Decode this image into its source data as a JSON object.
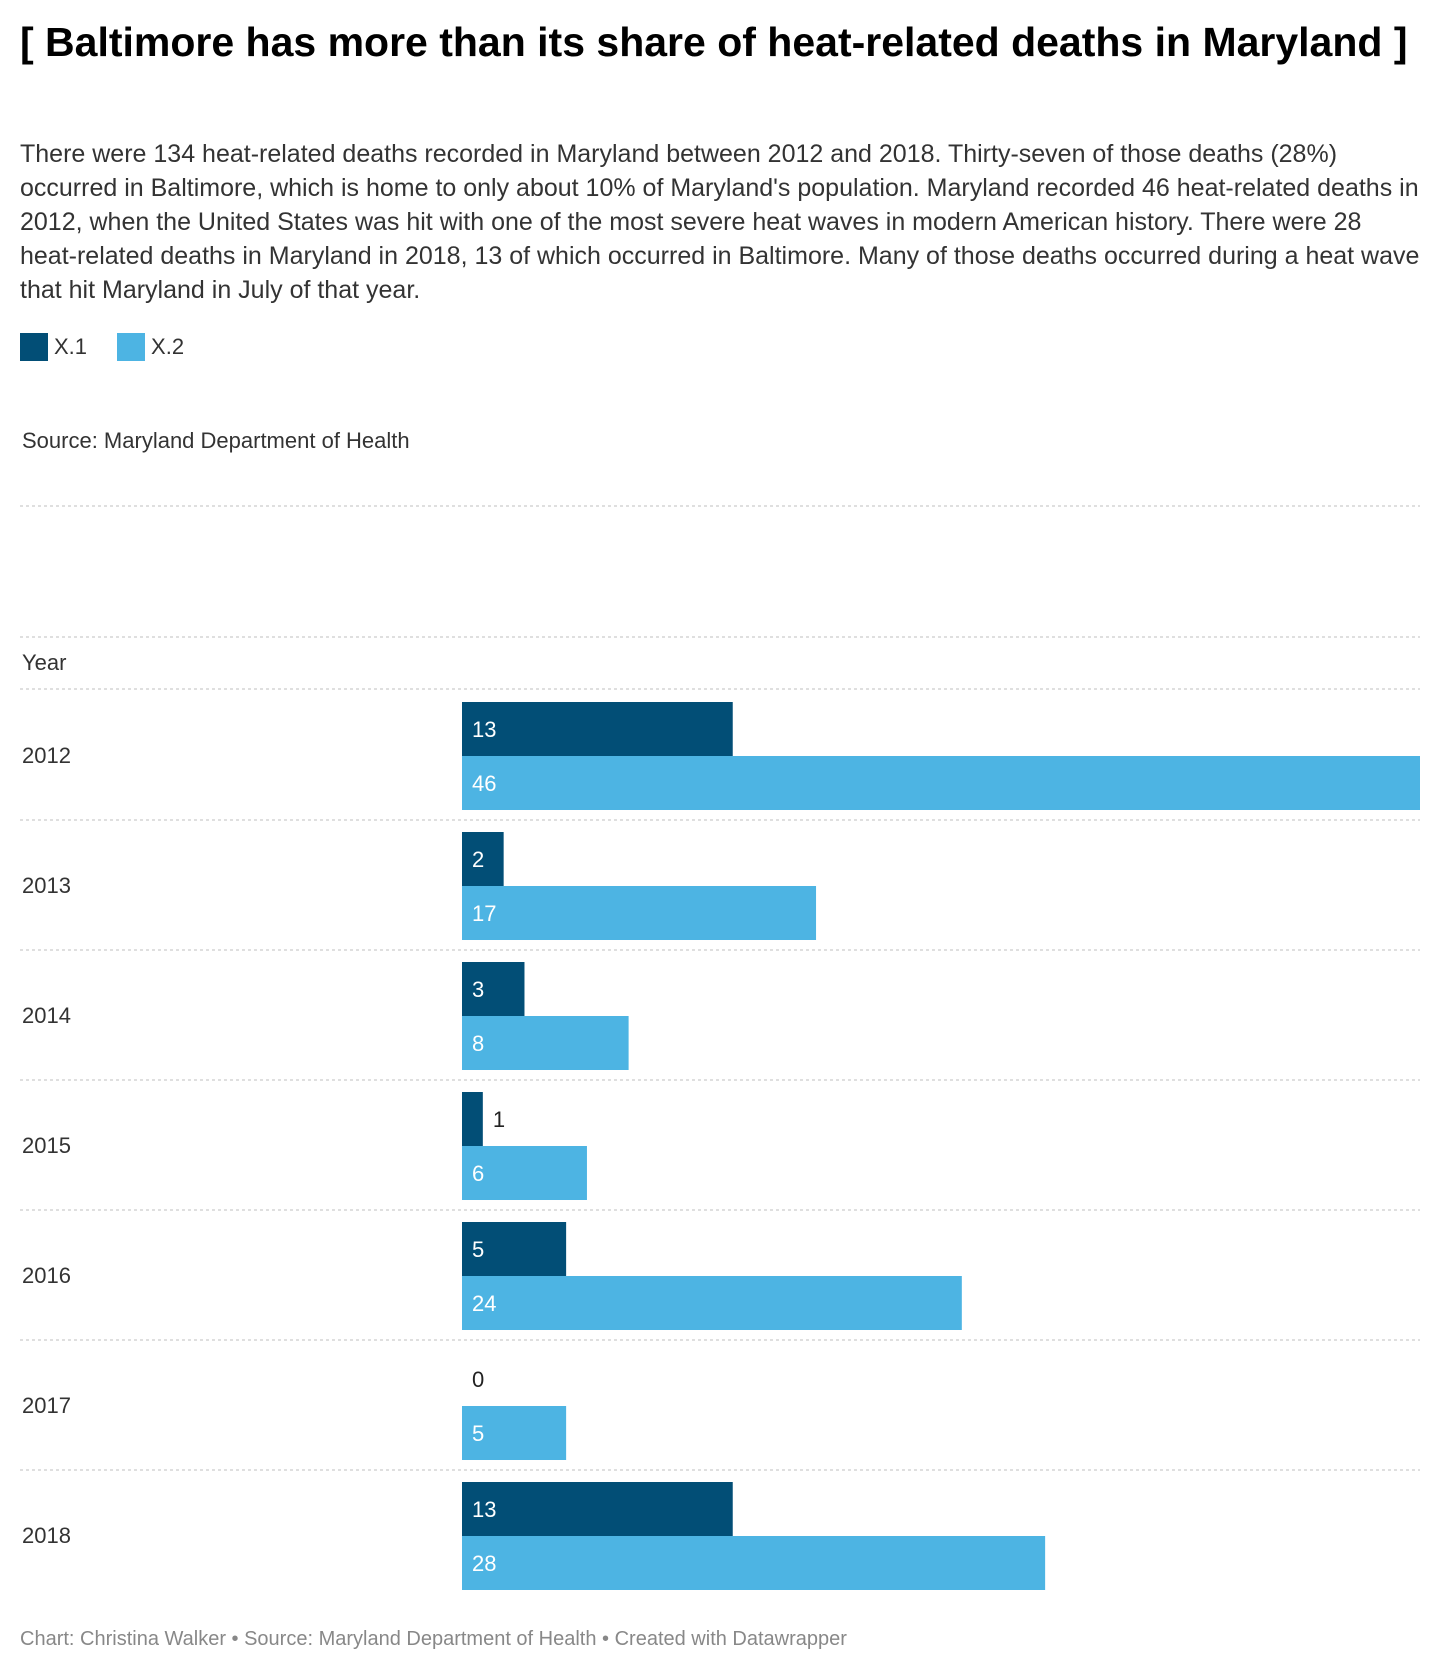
{
  "title": "[ Baltimore has more than its share of heat-related deaths in Maryland ]",
  "description": "There were 134 heat-related deaths recorded in Maryland between 2012 and 2018. Thirty-seven of those deaths (28%) occurred in Baltimore, which is home to only about 10% of Maryland's population. Maryland recorded 46 heat-related deaths in 2012, when the United States was hit with one of the most severe heat waves in modern American history. There were 28 heat-related deaths in Maryland in 2018, 13 of which occurred in Baltimore. Many of those deaths occurred during a heat wave that hit Maryland in July of that year.",
  "source_note": "Source: Maryland Department of Health",
  "footer": "Chart: Christina Walker • Source: Maryland Department of Health • Created with Datawrapper",
  "colors": {
    "x1": "#024e76",
    "x2": "#4db4e3",
    "gridline": "#cccccc"
  },
  "chart_data": {
    "type": "bar",
    "orientation": "horizontal",
    "column_header": "Year",
    "categories": [
      "2012",
      "2013",
      "2014",
      "2015",
      "2016",
      "2017",
      "2018"
    ],
    "series": [
      {
        "name": "X.1",
        "values": [
          13,
          2,
          3,
          1,
          5,
          0,
          13
        ]
      },
      {
        "name": "X.2",
        "values": [
          46,
          17,
          8,
          6,
          24,
          5,
          28
        ]
      }
    ],
    "xlim": [
      0,
      46
    ],
    "grid": false,
    "legend_position": "top-left",
    "data_labels": true
  }
}
